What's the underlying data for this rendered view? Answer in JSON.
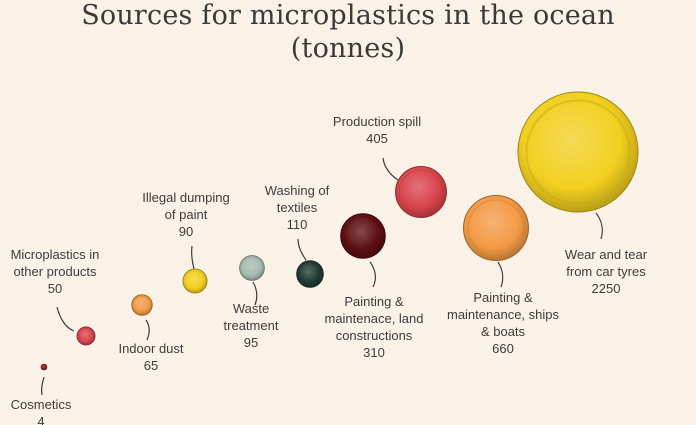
{
  "title": "Sources for microplastics in the ocean",
  "subtitle": "(tonnes)",
  "chart_data": {
    "type": "bubble",
    "title": "Sources for microplastics in the ocean",
    "subtitle": "(tonnes)",
    "unit": "tonnes",
    "series": [
      {
        "name": "Cosmetics",
        "label_lines": [
          "Cosmetics"
        ],
        "value": 4,
        "color": "#8b1a1a"
      },
      {
        "name": "Microplastics in other products",
        "label_lines": [
          "Microplastics in",
          "other products"
        ],
        "value": 50,
        "color": "#d8434b"
      },
      {
        "name": "Indoor dust",
        "label_lines": [
          "Indoor dust"
        ],
        "value": 65,
        "color": "#f39a45"
      },
      {
        "name": "Illegal dumping of paint",
        "label_lines": [
          "Illegal dumping",
          "of paint"
        ],
        "value": 90,
        "color": "#f2cf1f"
      },
      {
        "name": "Waste treatment",
        "label_lines": [
          "Waste",
          "treatment"
        ],
        "value": 95,
        "color": "#a6bbb2"
      },
      {
        "name": "Washing of textiles",
        "label_lines": [
          "Washing of",
          "textiles"
        ],
        "value": 110,
        "color": "#1f3b33"
      },
      {
        "name": "Painting & maintenace, land constructions",
        "label_lines": [
          "Painting &",
          "maintenace, land",
          "constructions"
        ],
        "value": 310,
        "color": "#5c0e12"
      },
      {
        "name": "Production spill",
        "label_lines": [
          "Production spill"
        ],
        "value": 405,
        "color": "#d8434b"
      },
      {
        "name": "Painting & maintenance, ships & boats",
        "label_lines": [
          "Painting &",
          "maintenance, ships",
          "& boats"
        ],
        "value": 660,
        "color": "#f39a45"
      },
      {
        "name": "Wear and tear from car tyres",
        "label_lines": [
          "Wear and tear",
          "from car tyres"
        ],
        "value": 2250,
        "color": "#f2cf1f"
      }
    ]
  }
}
